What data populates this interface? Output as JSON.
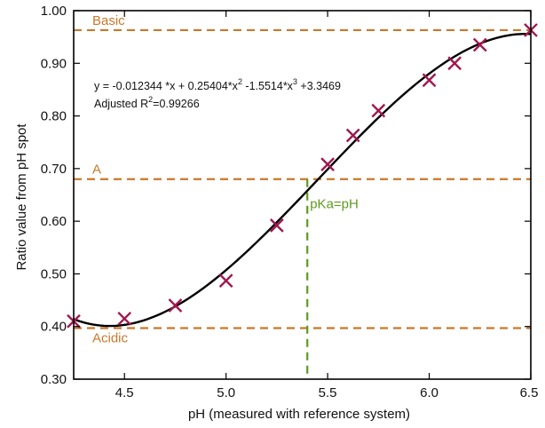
{
  "chart_data": {
    "type": "scatter",
    "xlabel": "pH (measured with reference system)",
    "ylabel": "Ratio value from pH spot",
    "xlim": [
      4.25,
      6.5
    ],
    "ylim": [
      0.3,
      1.0
    ],
    "x_ticks": [
      4.5,
      5.0,
      5.5,
      6.0,
      6.5
    ],
    "x_tick_labels": [
      "4.5",
      "5.0",
      "5.5",
      "6.0",
      "6.5"
    ],
    "y_ticks": [
      0.3,
      0.4,
      0.5,
      0.6,
      0.7,
      0.8,
      0.9,
      1.0
    ],
    "y_tick_labels": [
      "0.30",
      "0.40",
      "0.50",
      "0.60",
      "0.70",
      "0.80",
      "0.90",
      "1.00"
    ],
    "grid": false,
    "points": [
      {
        "x": 4.25,
        "y": 0.41
      },
      {
        "x": 4.5,
        "y": 0.415
      },
      {
        "x": 4.75,
        "y": 0.44
      },
      {
        "x": 5.0,
        "y": 0.487
      },
      {
        "x": 5.25,
        "y": 0.592
      },
      {
        "x": 5.5,
        "y": 0.708
      },
      {
        "x": 5.625,
        "y": 0.763
      },
      {
        "x": 5.75,
        "y": 0.81
      },
      {
        "x": 6.0,
        "y": 0.868
      },
      {
        "x": 6.125,
        "y": 0.9
      },
      {
        "x": 6.25,
        "y": 0.935
      },
      {
        "x": 6.5,
        "y": 0.963
      }
    ],
    "fit_curve": {
      "equation_line1": "y = -0.012344 *x + 0.25404*x",
      "equation_sup1": "2",
      "equation_line1b": "  -1.5514*x",
      "equation_sup2": "3",
      "equation_line1c": " +3.3469",
      "r2_prefix": "Adjusted R",
      "r2_sup": "2",
      "r2_value": "=0.99266"
    },
    "reference_lines": {
      "basic": {
        "label": "Basic",
        "y": 0.963
      },
      "a": {
        "label": "A",
        "y": 0.68
      },
      "acidic": {
        "label": "Acidic",
        "y": 0.397
      },
      "pka": {
        "label": "pKa=pH",
        "x": 5.4
      }
    },
    "colors": {
      "reference": "#C8782A",
      "pka": "#5E9A1E",
      "marker": "#A01850",
      "curve": "#000000"
    }
  }
}
